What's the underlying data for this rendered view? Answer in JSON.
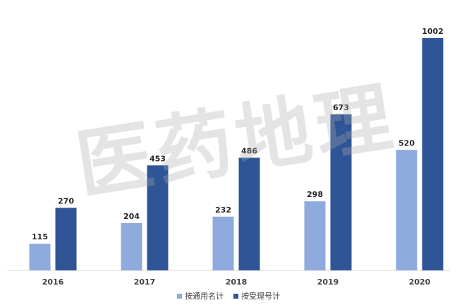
{
  "chart_data": {
    "type": "bar",
    "categories": [
      "2016",
      "2017",
      "2018",
      "2019",
      "2020"
    ],
    "series": [
      {
        "name": "按通用名计",
        "color": "#8FAADC",
        "values": [
          115,
          204,
          232,
          298,
          520
        ]
      },
      {
        "name": "按受理号计",
        "color": "#2F5597",
        "values": [
          270,
          453,
          486,
          673,
          1002
        ]
      }
    ],
    "ylim": [
      0,
      1002
    ],
    "grid": false,
    "legend_position": "bottom"
  },
  "watermark": "医药地理"
}
